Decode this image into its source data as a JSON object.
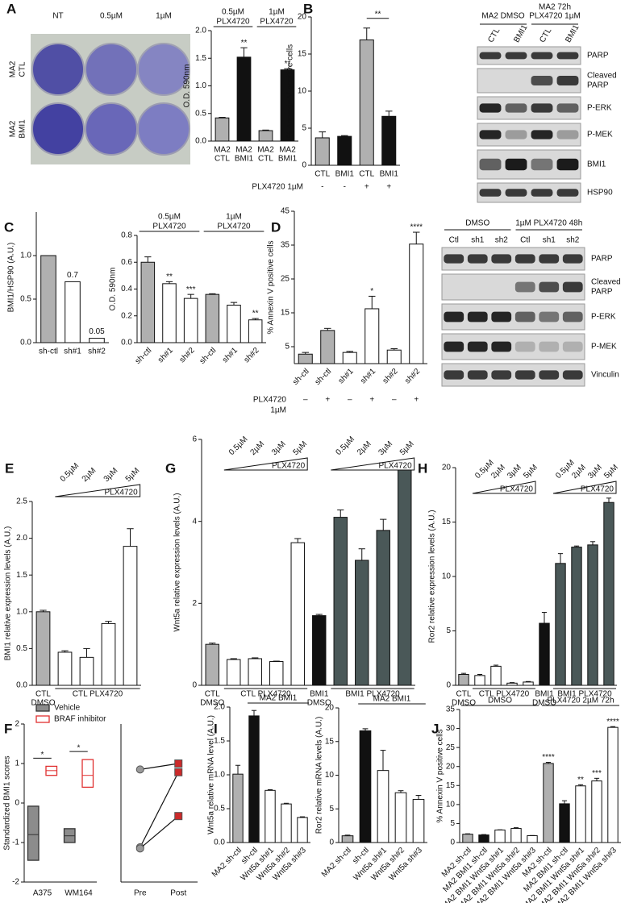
{
  "panel_letters": [
    "A",
    "B",
    "C",
    "D",
    "E",
    "F",
    "G",
    "H",
    "I",
    "J"
  ],
  "plate": {
    "columns": [
      "NT",
      "0.5µM",
      "1µM"
    ],
    "rows": [
      [
        "MA2",
        "CTL"
      ],
      [
        "MA2",
        "BMI1"
      ]
    ]
  },
  "blots": [
    {
      "headers": [
        "MA2 DMSO",
        [
          "MA2 72h",
          "PLX4720 1µM"
        ]
      ],
      "lanes": [
        "CTL",
        "BMI1",
        "CTL",
        "BMI1"
      ],
      "rows": [
        "PARP",
        [
          "Cleaved",
          "PARP"
        ],
        "P-ERK",
        "P-MEK",
        "BMI1",
        "HSP90"
      ]
    },
    {
      "headers": [
        "DMSO",
        "1µM PLX4720 48h"
      ],
      "lanes": [
        "Ctl",
        "sh1",
        "sh2",
        "Ctl",
        "sh1",
        "sh2"
      ],
      "rows": [
        "PARP",
        [
          "Cleaved",
          "PARP"
        ],
        "P-ERK",
        "P-MEK",
        "Vinculin"
      ]
    }
  ],
  "chart_data": [
    {
      "type": "bar",
      "ylabel": "O.D. 590nm",
      "categories": [
        [
          "MA2",
          "CTL"
        ],
        [
          "MA2",
          "BMI1"
        ],
        [
          "MA2",
          "CTL"
        ],
        [
          "MA2",
          "BMI1"
        ]
      ],
      "values": [
        0.42,
        1.52,
        0.19,
        1.29
      ],
      "errors": [
        0.01,
        0.17,
        0.01,
        0.02
      ],
      "colors": [
        "#b0b0b0",
        "#111111",
        "#b0b0b0",
        "#111111"
      ],
      "ylim": [
        0,
        2.0
      ],
      "yticks": [
        {
          "value": 0,
          "label": "0.0"
        },
        0.5,
        {
          "value": 1,
          "label": "1.0"
        },
        1.5,
        {
          "value": 2,
          "label": "2.0"
        }
      ],
      "annotations": [
        {
          "index": 1,
          "text": "**"
        },
        {
          "index": 3,
          "text": "**"
        }
      ],
      "groups": [
        {
          "label": [
            "0.5µM",
            "PLX4720"
          ],
          "from": 0,
          "to": 1
        },
        {
          "label": [
            "1µM",
            "PLX4720"
          ],
          "from": 2,
          "to": 3
        }
      ]
    },
    {
      "type": "bar",
      "ylabel": "% Annexin V positive cells",
      "categories": [
        "CTL",
        "BMI1",
        "CTL",
        "BMI1"
      ],
      "values": [
        3.7,
        3.9,
        16.9,
        6.6
      ],
      "errors": [
        0.8,
        0.1,
        1.6,
        0.7
      ],
      "colors": [
        "#b0b0b0",
        "#111111",
        "#b0b0b0",
        "#111111"
      ],
      "ylim": [
        0,
        20
      ],
      "yticks": [
        0,
        5,
        10,
        15,
        20
      ],
      "comparisons": [
        {
          "from": 2,
          "to": 3,
          "text": "**"
        }
      ],
      "treatment_row": {
        "label": "PLX4720 1µM",
        "marks": [
          "-",
          "-",
          "+",
          "+"
        ]
      }
    },
    {
      "type": "bar",
      "ylabel": "BMI1/HSP90 (A.U.)",
      "categories": [
        "sh-ctl",
        "sh#1",
        "sh#2"
      ],
      "values": [
        1.0,
        0.7,
        0.05
      ],
      "value_labels": [
        null,
        "0.7",
        "0.05"
      ],
      "colors": [
        "#b0b0b0",
        "#ffffff",
        "#ffffff"
      ],
      "ylim": [
        0,
        1.5
      ],
      "yticks": [
        {
          "value": 0,
          "label": "0.0"
        },
        0.5,
        {
          "value": 1,
          "label": "1.0"
        }
      ]
    },
    {
      "type": "bar",
      "ylabel": "O.D. 590nm",
      "categories": [
        "sh-ctl",
        "sh#1",
        "sh#2",
        "sh-ctl",
        "sh#1",
        "sh#2"
      ],
      "values": [
        0.6,
        0.44,
        0.33,
        0.36,
        0.28,
        0.17
      ],
      "errors": [
        0.04,
        0.015,
        0.03,
        0.005,
        0.02,
        0.01
      ],
      "colors": [
        "#b0b0b0",
        "#ffffff",
        "#ffffff",
        "#b0b0b0",
        "#ffffff",
        "#ffffff"
      ],
      "ylim": [
        0,
        0.8
      ],
      "yticks": [
        {
          "value": 0,
          "label": "0.0"
        },
        0.2,
        0.4,
        0.6,
        0.8
      ],
      "annotations": [
        {
          "index": 1,
          "text": "**"
        },
        {
          "index": 2,
          "text": "***"
        },
        {
          "index": 5,
          "text": "**"
        }
      ],
      "groups": [
        {
          "label": [
            "0.5µM",
            "PLX4720"
          ],
          "from": 0,
          "to": 2
        },
        {
          "label": [
            "1µM",
            "PLX4720"
          ],
          "from": 3,
          "to": 5
        }
      ]
    },
    {
      "type": "bar",
      "ylabel": "% Annexin V positive cells",
      "categories": [
        "sh-ctl",
        "sh-ctl",
        "sh#1",
        "sh#1",
        "sh#2",
        "sh#2"
      ],
      "values": [
        2.8,
        9.8,
        3.3,
        16.2,
        4.0,
        35.3
      ],
      "errors": [
        0.5,
        0.6,
        0.3,
        3.7,
        0.4,
        3.5
      ],
      "colors": [
        "#b0b0b0",
        "#b0b0b0",
        "#ffffff",
        "#ffffff",
        "#ffffff",
        "#ffffff"
      ],
      "ylim": [
        0,
        45
      ],
      "yticks": [
        5,
        15,
        25,
        35,
        45
      ],
      "annotations": [
        {
          "index": 3,
          "text": "*"
        },
        {
          "index": 5,
          "text": "****"
        }
      ],
      "treatment_row": {
        "label": [
          "PLX4720",
          "1µM"
        ],
        "marks": [
          "–",
          "+",
          "–",
          "+",
          "–",
          "+"
        ]
      }
    },
    {
      "type": "bar",
      "ylabel": "BMI1 relative expression levels (A.U.)",
      "categories": [
        null,
        null,
        null,
        null,
        null
      ],
      "values": [
        1.0,
        0.45,
        0.38,
        0.84,
        1.89
      ],
      "errors": [
        0.02,
        0.02,
        0.12,
        0.03,
        0.24
      ],
      "colors": [
        "#b0b0b0",
        "#ffffff",
        "#ffffff",
        "#ffffff",
        "#ffffff"
      ],
      "ylim": [
        0,
        2.5
      ],
      "yticks": [
        {
          "value": 0,
          "label": "0.0"
        },
        0.5,
        {
          "value": 1,
          "label": "1.0"
        },
        1.5,
        {
          "value": 2,
          "label": "2.0"
        },
        2.5
      ],
      "x_groups": [
        {
          "label": [
            "CTL",
            "DMSO"
          ],
          "from": 0,
          "to": 0
        },
        {
          "label": "CTL PLX4720",
          "from": 1,
          "to": 4
        }
      ],
      "doses": [
        {
          "labels": [
            "0.5µM",
            "2µM",
            "3µM",
            "5µM"
          ],
          "text": "PLX4720",
          "from": 1,
          "to": 4
        }
      ]
    },
    {
      "type": "bar",
      "ylabel": "Wnt5a relative expression levels (A.U.)",
      "categories": [
        null,
        null,
        null,
        null,
        null,
        null,
        null,
        null,
        null,
        null
      ],
      "values": [
        1.0,
        0.63,
        0.65,
        0.58,
        3.48,
        1.7,
        4.1,
        3.05,
        3.78,
        5.28
      ],
      "errors": [
        0.03,
        0.02,
        0.02,
        0.01,
        0.1,
        0.03,
        0.18,
        0.28,
        0.27,
        0.15
      ],
      "colors": [
        "#b0b0b0",
        "#ffffff",
        "#ffffff",
        "#ffffff",
        "#ffffff",
        "#111111",
        "#4a5858",
        "#4a5858",
        "#4a5858",
        "#4a5858"
      ],
      "ylim": [
        0,
        6
      ],
      "yticks": [
        0,
        2,
        4,
        6
      ],
      "x_groups": [
        {
          "label": [
            "CTL",
            "DMSO"
          ],
          "from": 0,
          "to": 0
        },
        {
          "label": "CTL PLX4720",
          "from": 1,
          "to": 4
        },
        {
          "label": [
            "BMI1",
            "DMSO"
          ],
          "from": 5,
          "to": 5
        },
        {
          "label": "BMI1 PLX4720",
          "from": 6,
          "to": 9
        }
      ],
      "doses": [
        {
          "labels": [
            "0.5µM",
            "2µM",
            "3µM",
            "5µM"
          ],
          "text": "PLX4720",
          "from": 1,
          "to": 4
        },
        {
          "labels": [
            "0.5µM",
            "2µM",
            "3µM",
            "5µM"
          ],
          "text": "PLX4720",
          "from": 6,
          "to": 9
        }
      ]
    },
    {
      "type": "bar",
      "ylabel": "Ror2 relative expression levels (A.U.)",
      "categories": [
        null,
        null,
        null,
        null,
        null,
        null,
        null,
        null,
        null,
        null
      ],
      "values": [
        1.0,
        0.9,
        1.75,
        0.2,
        0.3,
        5.7,
        11.2,
        12.7,
        12.9,
        16.8
      ],
      "errors": [
        0.1,
        0.1,
        0.1,
        0.05,
        0.05,
        1.0,
        0.9,
        0.1,
        0.3,
        0.4
      ],
      "colors": [
        "#b0b0b0",
        "#ffffff",
        "#ffffff",
        "#ffffff",
        "#ffffff",
        "#111111",
        "#4a5858",
        "#4a5858",
        "#4a5858",
        "#4a5858"
      ],
      "ylim": [
        0,
        20
      ],
      "yticks": [
        0,
        5,
        10,
        15,
        20
      ],
      "x_groups": [
        {
          "label": [
            "CTL",
            "DMSO"
          ],
          "from": 0,
          "to": 0
        },
        {
          "label": "CTL PLX4720",
          "from": 1,
          "to": 4
        },
        {
          "label": [
            "BMI1",
            "DMSO"
          ],
          "from": 5,
          "to": 5
        },
        {
          "label": "BMI1 PLX4720",
          "from": 6,
          "to": 9
        }
      ],
      "doses": [
        {
          "labels": [
            "0.5µM",
            "2µM",
            "3µM",
            "5µM"
          ],
          "text": "PLX4720",
          "from": 1,
          "to": 4
        },
        {
          "labels": [
            "0.5µM",
            "2µM",
            "3µM",
            "5µM"
          ],
          "text": "PLX4720",
          "from": 6,
          "to": 9
        }
      ]
    },
    {
      "type": "box",
      "ylabel": "Standardized BMI1 scores",
      "categories": [
        "A375",
        "WM164"
      ],
      "legend": "top",
      "series": [
        {
          "name": "Vehicle",
          "color": "#333333",
          "fill": "#8c8c8c",
          "low": [
            -1.45,
            -1.0
          ],
          "median": [
            -0.8,
            -0.83
          ],
          "high": [
            -0.08,
            -0.65
          ]
        },
        {
          "name": "BRAF inhibitor",
          "color": "#e03030",
          "fill": "#ffffff",
          "low": [
            0.7,
            0.4
          ],
          "median": [
            0.82,
            0.7
          ],
          "high": [
            0.93,
            1.1
          ]
        }
      ],
      "ylim": [
        -2,
        2
      ],
      "yticks": [
        -2,
        -1,
        0,
        1,
        2
      ],
      "annotations": [
        {
          "index": 0,
          "text": "*"
        },
        {
          "index": 1,
          "text": "*"
        }
      ]
    },
    {
      "type": "line",
      "categories": [
        "Pre",
        "Post"
      ],
      "ylim": [
        -2,
        2
      ],
      "marker_colors": [
        "#9a9a9a",
        "#cc2a2a"
      ],
      "series": [
        {
          "values": [
            0.85,
            1.0
          ]
        },
        {
          "values": [
            -1.12,
            0.78
          ]
        },
        {
          "values": [
            -1.15,
            -0.33
          ]
        }
      ]
    },
    {
      "type": "bar",
      "ylabel": "Wnt5a relative mRNA level (A.U.)",
      "categories": [
        "MA2 sh-ctl",
        "sh-ctl",
        "Wnt5a sh#1",
        "Wnt5a sh#2",
        "Wnt5a sh#3"
      ],
      "values": [
        1.01,
        1.87,
        0.77,
        0.57,
        0.37
      ],
      "errors": [
        0.13,
        0.08,
        0.01,
        0.01,
        0.01
      ],
      "colors": [
        "#b0b0b0",
        "#111111",
        "#ffffff",
        "#ffffff",
        "#ffffff"
      ],
      "ylim": [
        0,
        2.0
      ],
      "yticks": [
        {
          "value": 0,
          "label": "0.0"
        },
        0.5,
        {
          "value": 1,
          "label": "1.0"
        },
        1.5,
        {
          "value": 2,
          "label": "2.0"
        }
      ],
      "groups": [
        {
          "label": "MA2 BMI1",
          "from": 1,
          "to": 4
        }
      ]
    },
    {
      "type": "bar",
      "ylabel": "Ror2 relative mRNA levels (A.U.)",
      "categories": [
        "MA2 sh-ctl",
        "sh-ctl",
        "Wnt5a sh#1",
        "Wnt5a sh#2",
        "Wnt5a sh#3"
      ],
      "values": [
        1.0,
        16.6,
        10.7,
        7.4,
        6.4
      ],
      "errors": [
        0.1,
        0.3,
        3.0,
        0.3,
        0.6
      ],
      "colors": [
        "#b0b0b0",
        "#111111",
        "#ffffff",
        "#ffffff",
        "#ffffff"
      ],
      "ylim": [
        0,
        20
      ],
      "yticks": [
        0,
        5,
        10,
        15,
        20
      ],
      "groups": [
        {
          "label": "MA2 BMI1",
          "from": 1,
          "to": 4
        }
      ]
    },
    {
      "type": "bar",
      "ylabel": "% Annexin V positive cells",
      "categories": [
        "MA2 sh-ctl",
        "MA2 BMI1 sh-ctl",
        "MA2 BMI1 Wnt5a sh#1",
        "MA2 BMI1 Wnt5a sh#2",
        "MA2 BMI1 Wnt5a sh#3",
        "MA2 sh-ctl",
        "MA2 BMI1 sh-ctl",
        "MA2 BMI1 Wnt5a sh#1",
        "MA2 BMI1 Wnt5a sh#2",
        "MA2 BMI1 Wnt5a sh#3"
      ],
      "values": [
        2.2,
        2.0,
        3.3,
        3.7,
        1.8,
        20.8,
        10.2,
        14.9,
        16.2,
        30.3
      ],
      "errors": [
        0.1,
        0.1,
        0.05,
        0.2,
        0.05,
        0.3,
        0.8,
        0.3,
        0.7,
        0.2
      ],
      "colors": [
        "#b0b0b0",
        "#111111",
        "#ffffff",
        "#ffffff",
        "#ffffff",
        "#b0b0b0",
        "#111111",
        "#ffffff",
        "#ffffff",
        "#ffffff"
      ],
      "ylim": [
        0,
        35
      ],
      "yticks": [
        0,
        5,
        10,
        15,
        20,
        25,
        30,
        35
      ],
      "annotations": [
        {
          "index": 5,
          "text": "****"
        },
        {
          "index": 7,
          "text": "**"
        },
        {
          "index": 8,
          "text": "***"
        },
        {
          "index": 9,
          "text": "****"
        }
      ],
      "groups": [
        {
          "label": "DMSO",
          "from": 0,
          "to": 4
        },
        {
          "label": "PLX4720 2µM 72h",
          "from": 5,
          "to": 9
        }
      ]
    }
  ]
}
